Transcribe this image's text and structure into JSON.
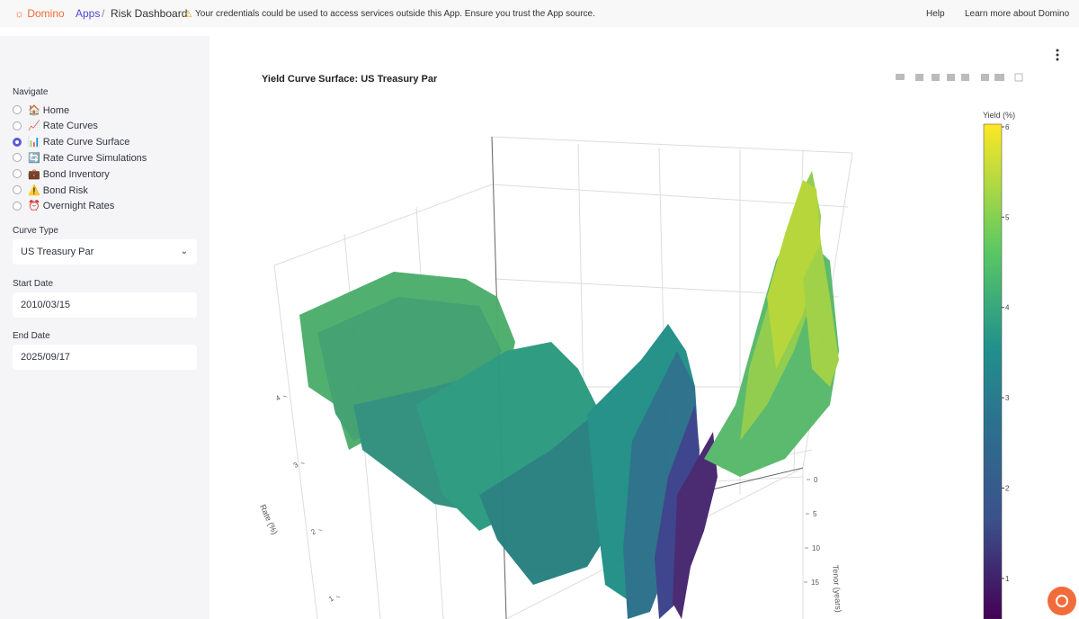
{
  "topbar": {
    "brand": "Domino",
    "breadcrumb": [
      "Apps",
      "Risk Dashboard"
    ],
    "warning": "Your credentials could be used to access services outside this App. Ensure you trust the App source.",
    "links": [
      "Help",
      "Learn more about Domino"
    ]
  },
  "sidebar": {
    "nav_label": "Navigate",
    "options": [
      "🏠 Home",
      "📈 Rate Curves",
      "📊 Rate Curve Surface",
      "🔄 Rate Curve Simulations",
      "💼 Bond Inventory",
      "⚠️ Bond Risk",
      "⏰ Overnight Rates"
    ],
    "selected_option": 2,
    "fields": [
      {
        "label": "Curve Type",
        "value": "US Treasury Par"
      },
      {
        "label": "Start Date",
        "value": "2010/03/15"
      },
      {
        "label": "End Date",
        "value": "2025/09/17"
      }
    ]
  },
  "chart_data": {
    "type": "surface",
    "title": "Yield Curve Surface: US Treasury Par",
    "colorbar_title": "Yield (%)",
    "zlim": [
      0.55,
      6.03
    ],
    "zticks": [
      1,
      2,
      3,
      4,
      5,
      6
    ],
    "y_axis_label": "Rate (%)",
    "yticks": [
      1,
      2,
      3,
      4
    ],
    "x_axis_label": "Tenor (years)",
    "xticks": [
      0,
      5,
      10,
      15
    ]
  }
}
